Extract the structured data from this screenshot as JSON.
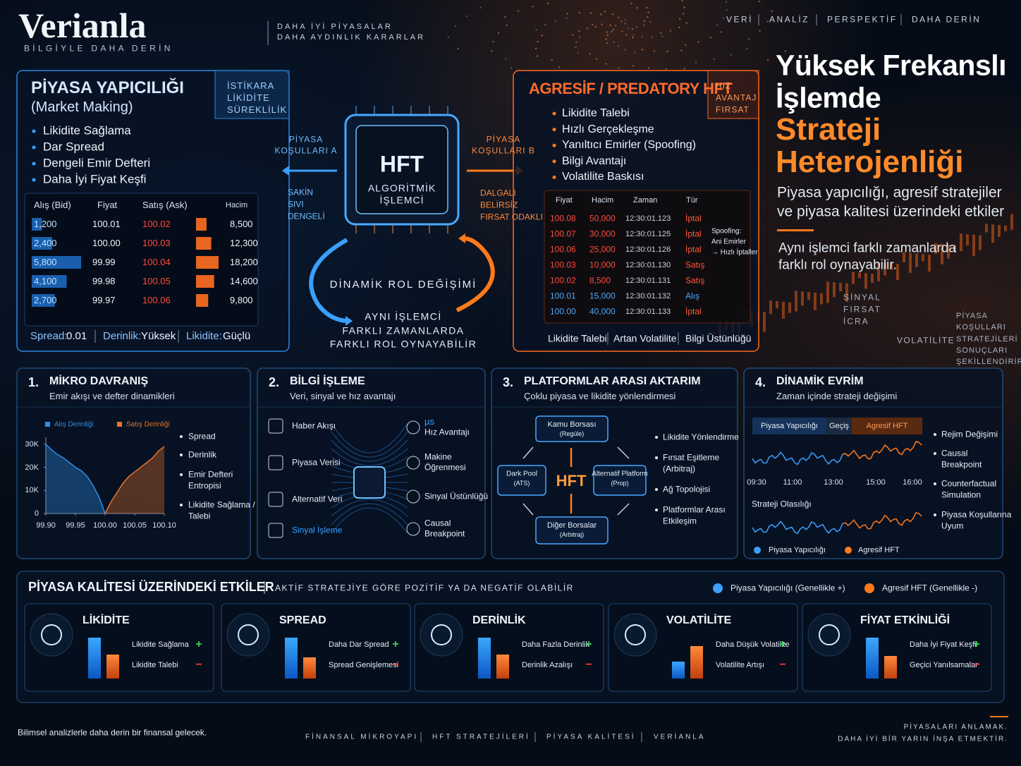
{
  "header": {
    "brand": "Verianla",
    "tagline": "BİLGİYLE DAHA DERİN",
    "slogan": [
      "DAHA İYİ PİYASALAR",
      "DAHA AYDINLIK KARARLAR"
    ],
    "nav": [
      "VERİ",
      "ANALİZ",
      "PERSPEKTİF",
      "DAHA DERİN"
    ]
  },
  "hero": {
    "title": [
      "Yüksek Frekanslı",
      "İşlemde"
    ],
    "accent": [
      "Strateji",
      "Heterojenliği"
    ],
    "subtitle": [
      "Piyasa yapıcılığı, agresif stratejiler",
      "ve piyasa kalitesi üzerindeki etkiler"
    ],
    "note": [
      "Aynı işlemci farklı zamanlarda",
      "farklı rol oynayabilir."
    ],
    "signal": [
      "SİNYAL",
      "FIRSAT",
      "İCRA"
    ],
    "volatility": "VOLATİLİTE",
    "conditions": [
      "PİYASA",
      "KOŞULLARI",
      "STRATEJİLERİ",
      "SONUÇLARI",
      "ŞEKİLLENDİRİR"
    ]
  },
  "market_making": {
    "title": "PİYASA YAPICILIĞI",
    "subtitle": "(Market Making)",
    "tags": [
      "İSTİKARA",
      "LİKİDİTE",
      "SÜREKLİLİK"
    ],
    "bullets": [
      "Likidite Sağlama",
      "Dar Spread",
      "Dengeli Emir Defteri",
      "Daha İyi Fiyat Keşfi"
    ],
    "columns": [
      "Alış (Bid)",
      "Fiyat",
      "Satış (Ask)",
      "Hacim"
    ],
    "rows": [
      {
        "bid": 1200,
        "bid_label": "1,200",
        "price": "100.01",
        "ask": "100.02",
        "volume": 8500,
        "volume_label": "8,500"
      },
      {
        "bid": 2400,
        "bid_label": "2,400",
        "price": "100.00",
        "ask": "100.03",
        "volume": 12300,
        "volume_label": "12,300"
      },
      {
        "bid": 5800,
        "bid_label": "5,800",
        "price": "99.99",
        "ask": "100.04",
        "volume": 18200,
        "volume_label": "18,200"
      },
      {
        "bid": 4100,
        "bid_label": "4,100",
        "price": "99.98",
        "ask": "100.05",
        "volume": 14600,
        "volume_label": "14,600"
      },
      {
        "bid": 2700,
        "bid_label": "2,700",
        "price": "99.97",
        "ask": "100.06",
        "volume": 9800,
        "volume_label": "9,800"
      }
    ],
    "footer": [
      [
        "Spread:",
        "0.01"
      ],
      [
        "Derinlik:",
        "Yüksek"
      ],
      [
        "Likidite:",
        "Güçlü"
      ]
    ]
  },
  "processor": {
    "title": "HFT",
    "subtitle": [
      "ALGORİTMİK",
      "İŞLEMCİ"
    ],
    "left_title": [
      "PİYASA",
      "KOŞULLARI A"
    ],
    "left_traits": [
      "SAKİN",
      "SIVI",
      "DENGELİ"
    ],
    "right_title": [
      "PİYASA",
      "KOŞULLARI B"
    ],
    "right_traits": [
      "DALGALI",
      "BELİRSİZ",
      "FIRSAT ODAKLI"
    ],
    "switch": "DİNAMİK ROL DEĞİŞİMİ",
    "caption": [
      "AYNI İŞLEMCİ",
      "FARKLI ZAMANLARDA",
      "FARKLI ROL OYNAYABİLİR"
    ]
  },
  "aggressive": {
    "title": "AGRESİF / PREDATORY HFT",
    "tags": [
      "HIZ",
      "AVANTAJ",
      "FIRSAT"
    ],
    "bullets": [
      "Likidite Talebi",
      "Hızlı Gerçekleşme",
      "Yanıltıcı Emirler (Spoofing)",
      "Bilgi Avantajı",
      "Volatilite Baskısı"
    ],
    "columns": [
      "Fiyat",
      "Hacim",
      "Zaman",
      "Tür"
    ],
    "rows": [
      {
        "price": "100.08",
        "volume": "50,000",
        "time": "12:30:01.123",
        "type": "İptal",
        "color": "#ff4a3a"
      },
      {
        "price": "100.07",
        "volume": "30,000",
        "time": "12:30:01.125",
        "type": "İptal",
        "color": "#ff4a3a"
      },
      {
        "price": "100.06",
        "volume": "25,000",
        "time": "12:30:01.126",
        "type": "İptal",
        "color": "#ff4a3a"
      },
      {
        "price": "100.03",
        "volume": "10,000",
        "time": "12:30:01.130",
        "type": "Satış",
        "color": "#ff4a3a"
      },
      {
        "price": "100.02",
        "volume": "8,500",
        "time": "12:30:01.131",
        "type": "Satış",
        "color": "#ff4a3a"
      },
      {
        "price": "100.01",
        "volume": "15,000",
        "time": "12:30:01.132",
        "type": "Alış",
        "color": "#4aa8ff"
      },
      {
        "price": "100.00",
        "volume": "40,000",
        "time": "12:30:01.133",
        "type": "İptal",
        "color": "#4aa8ff"
      }
    ],
    "annotation": [
      "Spoofing:",
      "Ani Emirler",
      "→ Hızlı İptaller"
    ],
    "footer": [
      "Likidite Talebi",
      "Artan Volatilite",
      "Bilgi Üstünlüğü"
    ]
  },
  "micro": {
    "number": "1.",
    "title": "MİKRO DAVRANIŞ",
    "subtitle": "Emir akışı ve defter dinamikleri",
    "chart_data": {
      "type": "area",
      "x": [
        99.9,
        99.91,
        99.92,
        99.93,
        99.94,
        99.95,
        99.96,
        99.97,
        99.98,
        99.99,
        100,
        100.01,
        100.02,
        100.03,
        100.04,
        100.05,
        100.06,
        100.07,
        100.08,
        100.09,
        100.1
      ],
      "series": [
        {
          "name": "Alış Derinliği",
          "color": "#2f8fe8",
          "values": [
            30000,
            27500,
            25500,
            24000,
            22000,
            20000,
            18500,
            16000,
            12000,
            7000,
            0,
            null,
            null,
            null,
            null,
            null,
            null,
            null,
            null,
            null,
            null
          ]
        },
        {
          "name": "Satış Derinliği",
          "color": "#e8742a",
          "values": [
            null,
            null,
            null,
            null,
            null,
            null,
            null,
            null,
            null,
            null,
            0,
            5000,
            9000,
            13000,
            16000,
            18000,
            20000,
            22000,
            24000,
            27000,
            29000
          ]
        }
      ],
      "xlim": [
        99.9,
        100.1
      ],
      "ylim": [
        0,
        33000
      ],
      "xticks": [
        {
          "value": 99.9,
          "label": "99.90"
        },
        99.95,
        {
          "value": 100,
          "label": "100.00"
        },
        100.05,
        {
          "value": 100.1,
          "label": "100.10"
        }
      ],
      "yticks": [
        0,
        {
          "value": 10000,
          "label": "10K"
        },
        {
          "value": 20000,
          "label": "20K"
        },
        {
          "value": 30000,
          "label": "30K"
        }
      ]
    },
    "bullets": [
      [
        "Spread"
      ],
      [
        "Derinlik"
      ],
      [
        "Emir Defteri",
        "Entropisi"
      ],
      [
        "Likidite Sağlama /",
        "Talebi"
      ]
    ]
  },
  "info": {
    "number": "2.",
    "title": "BİLGİ İŞLEME",
    "subtitle": "Veri, sinyal ve hız avantajı",
    "inputs": [
      "Haber Akışı",
      "Piyasa Verisi",
      "Alternatif Veri",
      "Sinyal İşleme"
    ],
    "outputs": [
      [
        "µs",
        "Hız Avantajı"
      ],
      [
        "Makine",
        "Öğrenmesi"
      ],
      [
        "Sinyal Üstünlüğü"
      ],
      [
        "Causal",
        "Breakpoint"
      ]
    ]
  },
  "platforms": {
    "number": "3.",
    "title": "PLATFORMLAR ARASI AKTARIM",
    "subtitle": "Çoklu piyasa ve likidite yönlendirmesi",
    "nodes": {
      "public": [
        "Kamu Borsası",
        "(Regüle)"
      ],
      "dark": [
        "Dark Pool",
        "(ATS)"
      ],
      "center": "HFT",
      "alt": [
        "Alternatif Platform",
        "(Prop)"
      ],
      "other": [
        "Diğer Borsalar",
        "(Arbitraj)"
      ]
    },
    "bullets": [
      [
        "Likidite Yönlendirme"
      ],
      [
        "Fırsat Eşitleme",
        "(Arbitraj)"
      ],
      [
        "Ağ Topolojisi"
      ],
      [
        "Platformlar Arası",
        "Etkileşim"
      ]
    ]
  },
  "evolution": {
    "number": "4.",
    "title": "DİNAMİK EVRİM",
    "subtitle": "Zaman içinde strateji değişimi",
    "phases": [
      "Piyasa Yapıcılığı",
      "Geçiş",
      "Agresif HFT"
    ],
    "times": [
      "09:30",
      "11:00",
      "13:00",
      "15:00",
      "16:00"
    ],
    "probability": "Strateji Olasılığı",
    "legend": [
      "Piyasa Yapıcılığı",
      "Agresif HFT"
    ],
    "bullets": [
      [
        "Rejim Değişimi"
      ],
      [
        "Causal",
        "Breakpoint"
      ],
      [
        "Counterfactual",
        "Simulation"
      ],
      [
        "Piyasa Koşullarına",
        "Uyum"
      ]
    ]
  },
  "impacts": {
    "title": "PİYASA KALİTESİ ÜZERİNDEKİ ETKİLER",
    "subtitle": "AKTİF STRATEJİYE GÖRE POZİTİF YA DA NEGATİF OLABİLİR",
    "legend": [
      "Piyasa Yapıcılığı (Genellikle +)",
      "Agresif HFT (Genellikle -)"
    ],
    "cards": [
      {
        "title": "LİKİDİTE",
        "positive": "Likidite Sağlama",
        "negative": "Likidite Talebi",
        "plus": "+",
        "minus": "−",
        "bars": [
          58,
          34
        ]
      },
      {
        "title": "SPREAD",
        "positive": "Daha Dar Spread",
        "negative": "Spread Genişlemesi",
        "plus": "+",
        "minus": "−",
        "bars": [
          58,
          30
        ]
      },
      {
        "title": "DERİNLİK",
        "positive": "Daha Fazla Derinlik",
        "negative": "Derinlik Azalışı",
        "plus": "+",
        "minus": "−",
        "bars": [
          58,
          34
        ]
      },
      {
        "title": "VOLATİLİTE",
        "positive": "Daha Düşük Volatilite",
        "negative": "Volatilite Artışı",
        "plus": "+",
        "minus": "−",
        "bars": [
          24,
          46
        ]
      },
      {
        "title": "FİYAT ETKİNLİĞİ",
        "positive": "Daha İyi Fiyat Keşfi",
        "negative": "Geçici Yanılsamalar",
        "plus": "+",
        "minus": "−",
        "bars": [
          58,
          32
        ]
      }
    ]
  },
  "footer": {
    "left": "Bilimsel analizlerle daha derin bir finansal gelecek.",
    "nav": [
      "FİNANSAL MİKROYAPI",
      "HFT STRATEJİLERİ",
      "PİYASA KALİTESİ",
      "VERİANLA"
    ],
    "right": [
      "PİYASALARI ANLAMAK.",
      "DAHA İYİ BİR YARIN İNŞA ETMEKTİR."
    ]
  }
}
